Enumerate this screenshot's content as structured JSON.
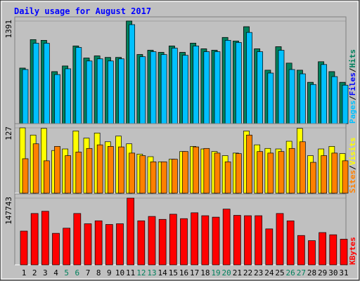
{
  "chart_data": [
    {
      "type": "bar",
      "title": "Daily usage for August 2017",
      "legend_separator": "/",
      "ylim": [
        0,
        1391
      ],
      "yticks": [
        1391
      ],
      "series": [
        {
          "name": "Hits",
          "color": "#00805C",
          "values": [
            753,
            1140,
            1130,
            705,
            782,
            1053,
            889,
            918,
            898,
            898,
            1391,
            937,
            995,
            966,
            1053,
            966,
            1092,
            1014,
            995,
            1169,
            1121,
            1314,
            1014,
            725,
            1043,
            821,
            725,
            560,
            840,
            705,
            560
          ]
        },
        {
          "name": "Files",
          "color": "#0000FF",
          "values": [
            753,
            1140,
            1130,
            705,
            782,
            1053,
            889,
            918,
            898,
            898,
            1391,
            937,
            995,
            966,
            1053,
            966,
            1092,
            1014,
            995,
            1169,
            1121,
            1314,
            1014,
            725,
            1043,
            821,
            725,
            560,
            840,
            705,
            560
          ]
        },
        {
          "name": "Pages",
          "color": "#00C0FF",
          "values": [
            734,
            1091,
            1091,
            666,
            744,
            1034,
            850,
            879,
            850,
            879,
            1343,
            908,
            976,
            937,
            1024,
            927,
            1053,
            976,
            976,
            1130,
            1101,
            1237,
            976,
            686,
            995,
            734,
            676,
            531,
            802,
            638,
            522
          ]
        }
      ]
    },
    {
      "type": "bar",
      "legend_separator": "/",
      "ylim": [
        0,
        127
      ],
      "yticks": [
        127
      ],
      "series": [
        {
          "name": "Visits",
          "color": "#FFFF00",
          "values": [
            127,
            113,
            126,
            83,
            86,
            121,
            107,
            117,
            100,
            111,
            96,
            76,
            71,
            61,
            66,
            81,
            91,
            86,
            81,
            73,
            78,
            121,
            94,
            87,
            86,
            101,
            126,
            73,
            86,
            91,
            77
          ]
        },
        {
          "name": "Sites",
          "color": "#FF8000",
          "values": [
            67,
            96,
            63,
            91,
            73,
            80,
            87,
            94,
            91,
            90,
            78,
            73,
            61,
            61,
            66,
            81,
            90,
            87,
            78,
            61,
            77,
            113,
            81,
            78,
            81,
            87,
            100,
            60,
            73,
            78,
            63
          ]
        }
      ]
    },
    {
      "type": "bar",
      "ylim": [
        0,
        147743
      ],
      "yticks": [
        147743
      ],
      "categories": [
        "1",
        "2",
        "3",
        "4",
        "5",
        "6",
        "7",
        "8",
        "9",
        "10",
        "11",
        "12",
        "13",
        "14",
        "15",
        "16",
        "17",
        "18",
        "19",
        "20",
        "21",
        "22",
        "23",
        "24",
        "25",
        "26",
        "27",
        "28",
        "29",
        "30",
        "31"
      ],
      "category_colors": [
        "#000000",
        "#000000",
        "#000000",
        "#000000",
        "#00805C",
        "#00805C",
        "#000000",
        "#000000",
        "#000000",
        "#000000",
        "#000000",
        "#00805C",
        "#00805C",
        "#000000",
        "#000000",
        "#000000",
        "#000000",
        "#000000",
        "#00805C",
        "#00805C",
        "#000000",
        "#000000",
        "#000000",
        "#000000",
        "#000000",
        "#00805C",
        "#00805C",
        "#000000",
        "#000000",
        "#000000",
        "#000000"
      ],
      "series": [
        {
          "name": "KBytes",
          "color": "#FF0000",
          "values": [
            74700,
            113700,
            118600,
            69800,
            81200,
            113700,
            91000,
            97500,
            89400,
            91000,
            147743,
            97500,
            107200,
            100700,
            112100,
            102300,
            115300,
            108800,
            105600,
            123400,
            109600,
            108800,
            108800,
            79600,
            113700,
            97400,
            65000,
            53600,
            71500,
            66600,
            56800
          ]
        }
      ]
    }
  ]
}
